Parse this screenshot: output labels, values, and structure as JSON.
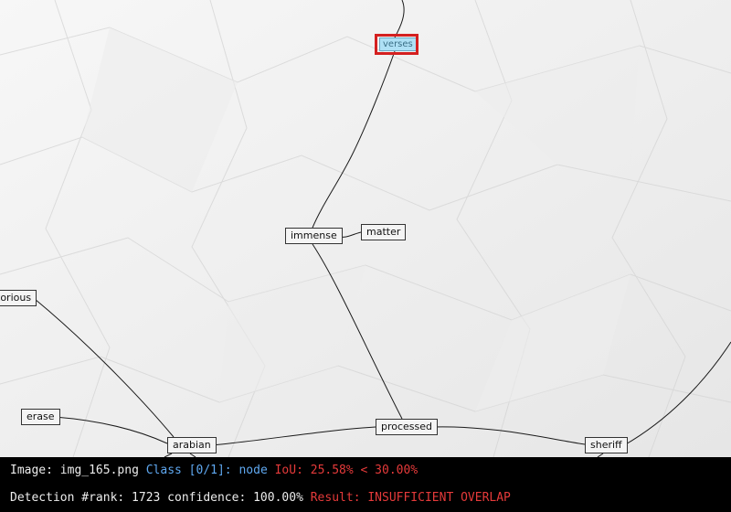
{
  "graph": {
    "nodes": {
      "verses": "verses",
      "immense": "immense",
      "matter": "matter",
      "notorious": "torious",
      "erase": "erase",
      "arabian": "arabian",
      "processed": "processed",
      "sheriff": "sheriff"
    },
    "edges": [
      [
        "verses",
        "immense"
      ],
      [
        "immense",
        "matter"
      ],
      [
        "immense",
        "processed"
      ],
      [
        "notorious",
        "arabian"
      ],
      [
        "erase",
        "arabian"
      ],
      [
        "arabian",
        "processed"
      ],
      [
        "processed",
        "sheriff"
      ]
    ],
    "highlighted_node": "verses"
  },
  "status": {
    "image_label": "Image:",
    "image_name": "img_165.png",
    "class_text": "Class [0/1]: node",
    "iou_text": "IoU: 25.58% < 30.00%",
    "detection_text": "Detection #rank: 1723 confidence: 100.00%",
    "result_text": "Result: INSUFFICIENT OVERLAP"
  },
  "colors": {
    "highlight_box": "#d42020",
    "class_text": "#5fa8f0",
    "warning_text": "#e53a3a",
    "status_bar": "#000000"
  }
}
